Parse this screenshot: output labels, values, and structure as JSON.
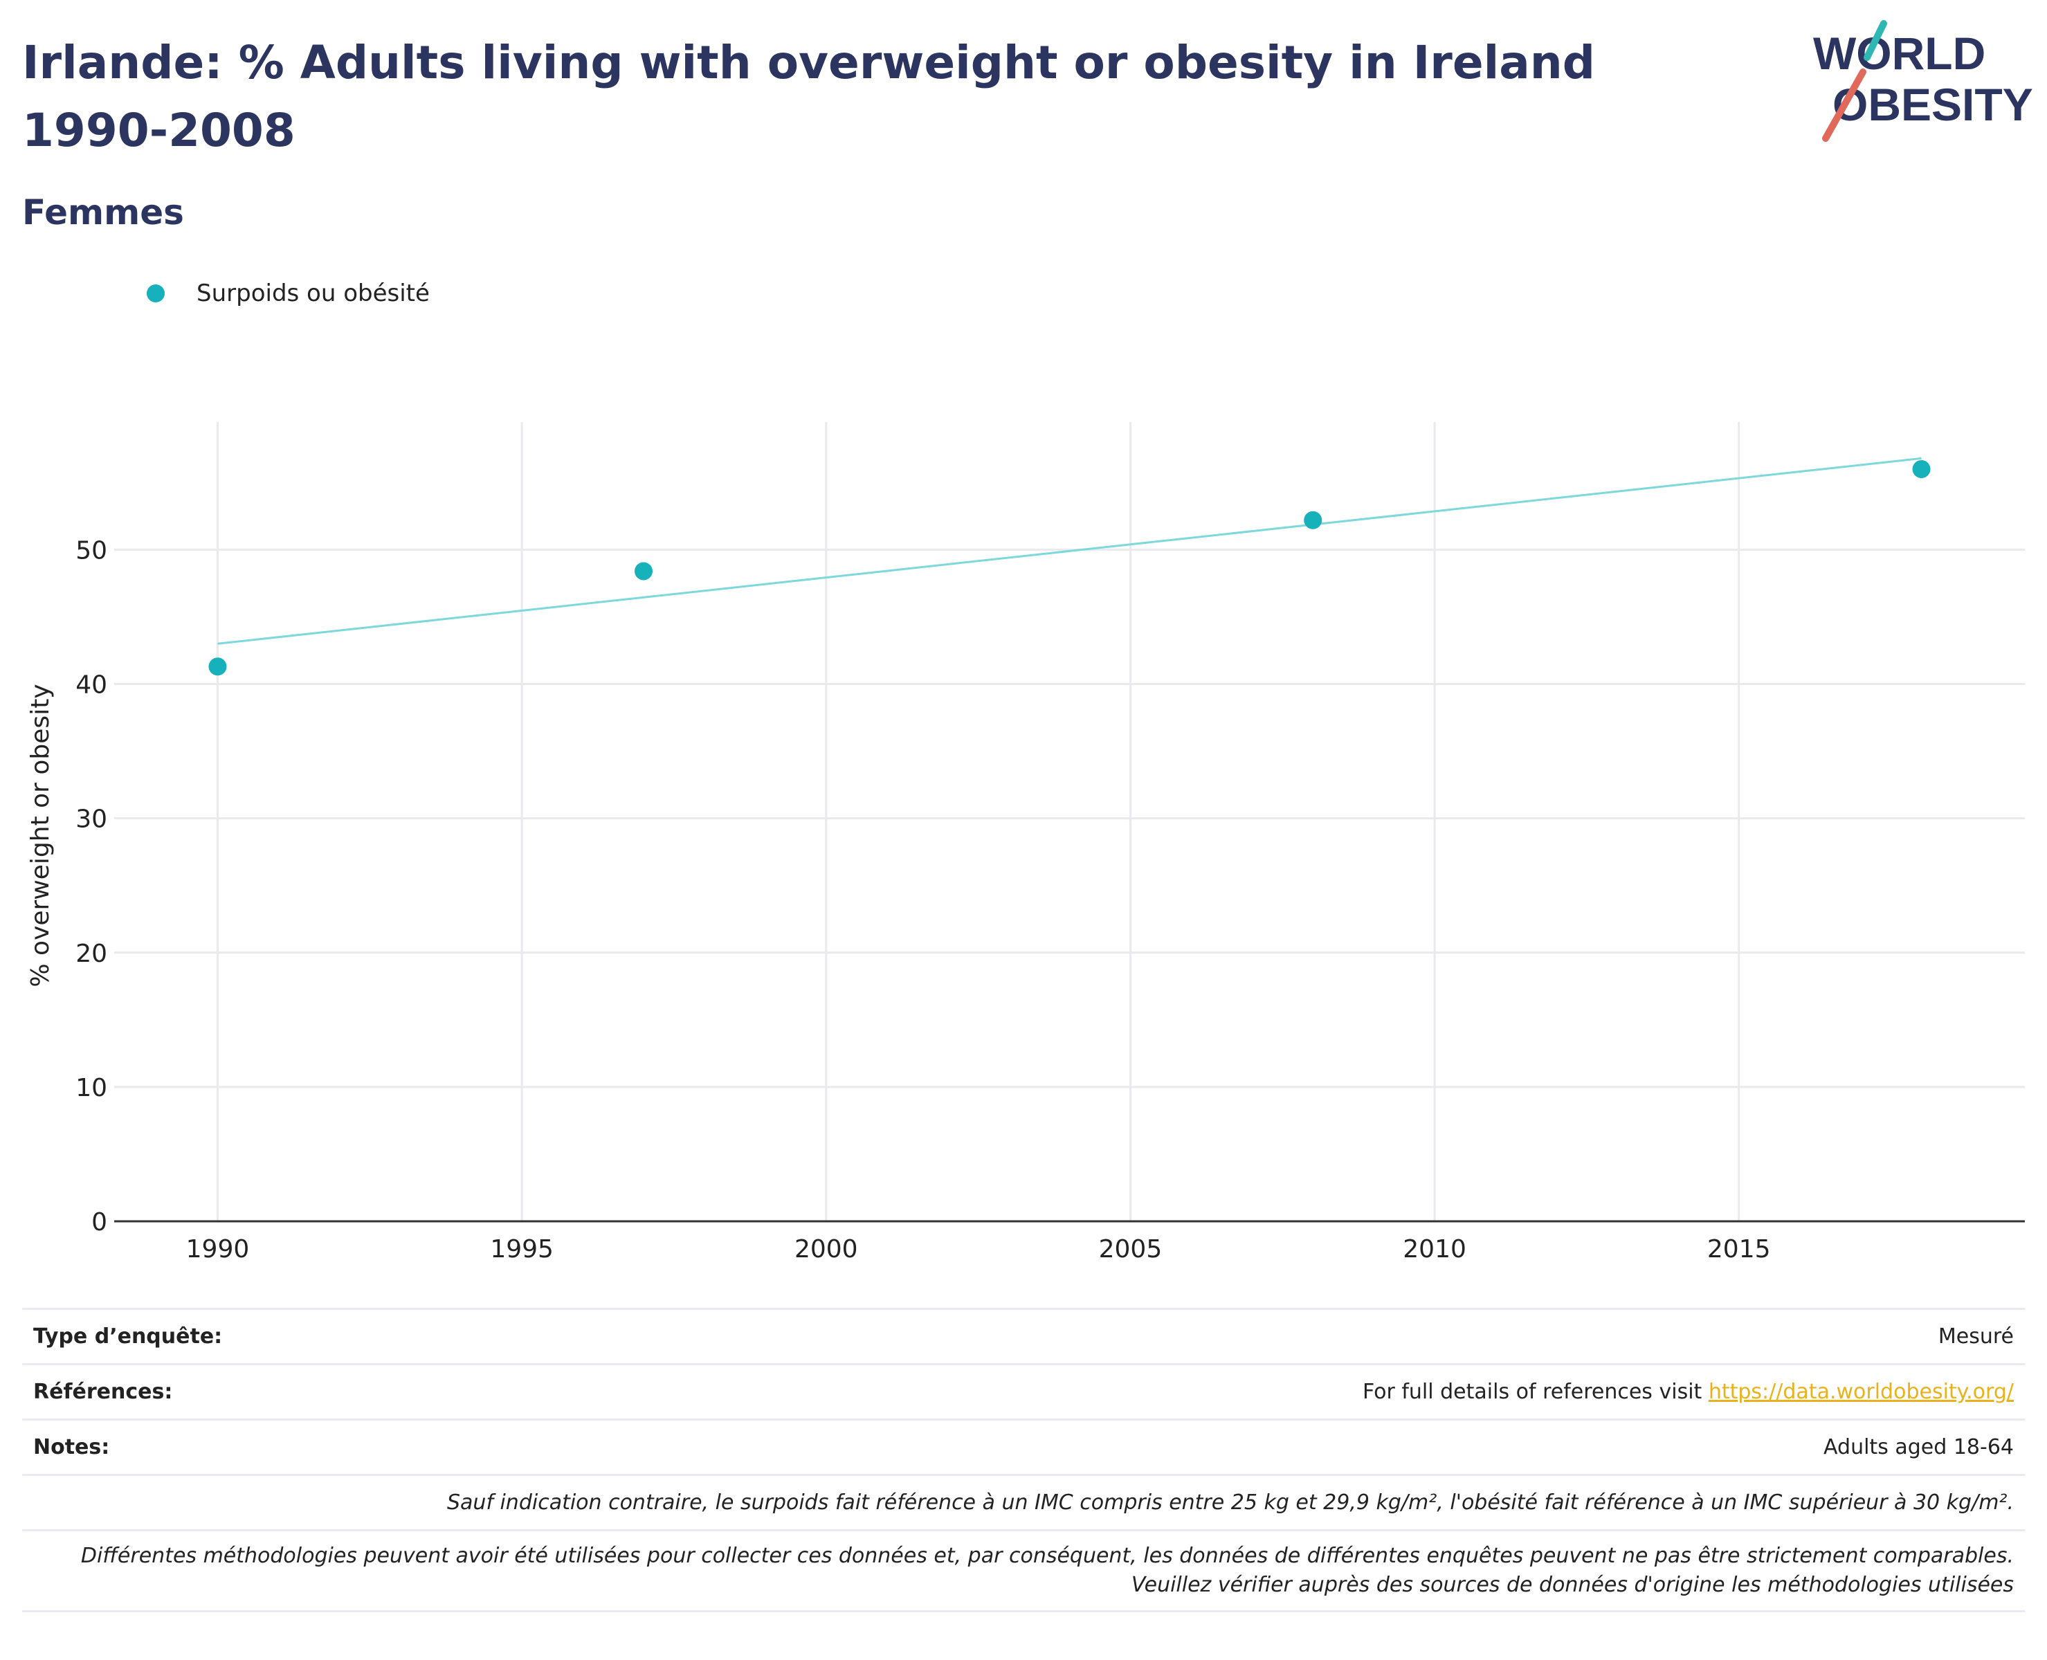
{
  "header": {
    "title": "Irlande: % Adults living with overweight or obesity in Ireland 1990-2008",
    "subtitle": "Femmes"
  },
  "logo": {
    "line1": "WORLD",
    "line2": "OBESITY",
    "accent1": "#2fb8b3",
    "accent2": "#e0695b"
  },
  "colors": {
    "title": "#2b3560",
    "marker": "#17b1bb",
    "trend": "#7dd8dc",
    "link": "#e8b21c"
  },
  "chart_data": {
    "type": "scatter",
    "title": "Irlande: % Adults living with overweight or obesity in Ireland 1990-2008",
    "subtitle": "Femmes",
    "xlabel": "",
    "ylabel": "% overweight or obesity",
    "xlim": [
      1988.3,
      2019.7
    ],
    "ylim": [
      0,
      59.5
    ],
    "xticks": [
      1990,
      1995,
      2000,
      2005,
      2010,
      2015
    ],
    "yticks": [
      0,
      10,
      20,
      30,
      40,
      50
    ],
    "grid": true,
    "legend_position": "top-left",
    "series": [
      {
        "name": "Surpoids ou obésité",
        "x": [
          1990,
          1997,
          2008,
          2018
        ],
        "y": [
          41.3,
          48.4,
          52.2,
          56.0
        ]
      }
    ],
    "trendline": {
      "x": [
        1990,
        2018
      ],
      "y": [
        43.0,
        56.8
      ]
    }
  },
  "info": {
    "survey_type_label": "Type d’enquête:",
    "survey_type_value": "Mesuré",
    "references_label": "Références:",
    "references_text": "For full details of references visit ",
    "references_link": "https://data.worldobesity.org/",
    "notes_label": "Notes:",
    "notes_value": "Adults aged 18-64",
    "definition_note": "Sauf indication contraire, le surpoids fait référence à un IMC compris entre 25 kg et 29,9 kg/m², l'obésité fait référence à un IMC supérieur à 30 kg/m².",
    "methodology_note": "Différentes méthodologies peuvent avoir été utilisées pour collecter ces données et, par conséquent, les données de différentes enquêtes peuvent ne pas être strictement comparables. Veuillez vérifier auprès des sources de données d'origine les méthodologies utilisées"
  }
}
